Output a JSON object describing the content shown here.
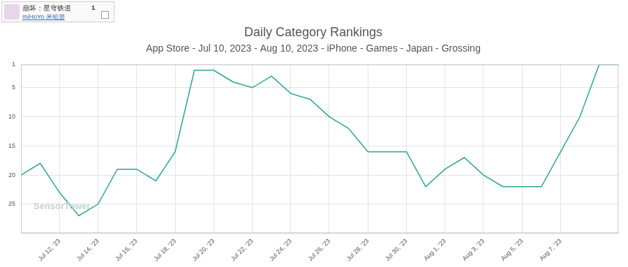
{
  "header": {
    "app_name": "崩坏：星穹铁道",
    "publisher": "miHoYo 米哈游",
    "badge": "1"
  },
  "watermark": "SensorTower",
  "chart_data": {
    "type": "line",
    "title": "Daily Category Rankings",
    "subtitle": "App Store - Jul 10, 2023 - Aug 10, 2023 - iPhone - Games - Japan - Grossing",
    "categories": [
      null,
      null,
      "Jul 12, '23",
      null,
      "Jul 14, '23",
      null,
      "Jul 16, '23",
      null,
      "Jul 18, '23",
      null,
      "Jul 20, '23",
      null,
      "Jul 22, '23",
      null,
      "Jul 24, '23",
      null,
      "Jul 26, '23",
      null,
      "Jul 28, '23",
      null,
      "Jul 30, '23",
      null,
      "Aug 1, '23",
      null,
      "Aug 3, '23",
      null,
      "Aug 5, '23",
      null,
      "Aug 7, '23",
      null,
      null,
      null
    ],
    "values": [
      20,
      18,
      23,
      27,
      25,
      19,
      19,
      21,
      16,
      2,
      2,
      4,
      5,
      3,
      6,
      7,
      10,
      12,
      16,
      16,
      16,
      22,
      19,
      17,
      20,
      22,
      22,
      22,
      16,
      10,
      1,
      1
    ],
    "color": "#26a69a",
    "ylim": [
      30,
      1
    ],
    "yticks": [
      1,
      5,
      10,
      15,
      20,
      25
    ],
    "grid": true
  }
}
